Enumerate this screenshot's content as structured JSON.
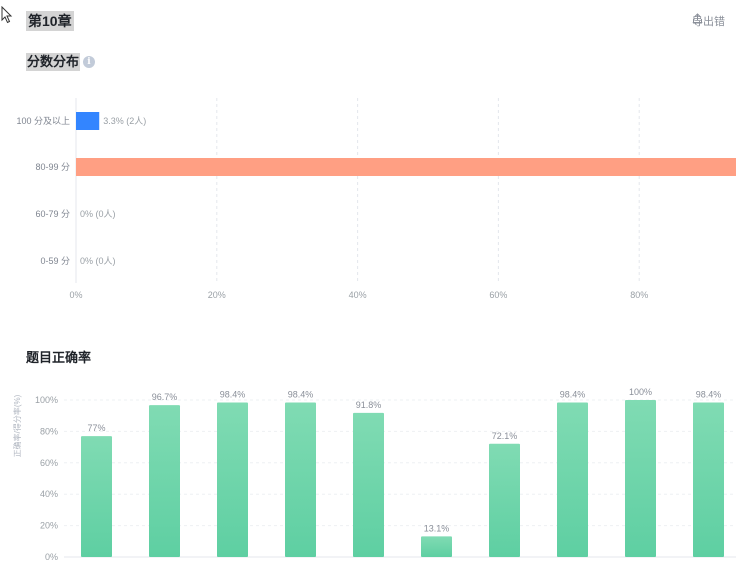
{
  "header": {
    "title": "第10章",
    "export_label": "导出错"
  },
  "score_section": {
    "title": "分数分布"
  },
  "accuracy_section": {
    "title": "题目正确率"
  },
  "chart_data": [
    {
      "type": "bar",
      "orientation": "horizontal",
      "title": "分数分布",
      "categories": [
        "100 分及以上",
        "80-99 分",
        "60-79 分",
        "0-59 分"
      ],
      "values": [
        3.3,
        96.7,
        0,
        0
      ],
      "value_labels": [
        "3.3% (2人)",
        "",
        "0% (0人)",
        "0% (0人)"
      ],
      "colors": [
        "#3385ff",
        "#ff9f83",
        "#cccccc",
        "#cccccc"
      ],
      "xlim": [
        0,
        100
      ],
      "xticks": [
        "0%",
        "20%",
        "40%",
        "60%",
        "80%"
      ],
      "xtick_values": [
        0,
        20,
        40,
        60,
        80
      ],
      "grid": true
    },
    {
      "type": "bar",
      "title": "题目正确率",
      "ylabel": "正确率/得分率(%)",
      "values": [
        77,
        96.7,
        98.4,
        98.4,
        91.8,
        13.1,
        72.1,
        98.4,
        100,
        98.4
      ],
      "value_labels": [
        "77%",
        "96.7%",
        "98.4%",
        "98.4%",
        "91.8%",
        "13.1%",
        "72.1%",
        "98.4%",
        "100%",
        "98.4%"
      ],
      "ylim": [
        0,
        100
      ],
      "yticks": [
        "0%",
        "20%",
        "40%",
        "60%",
        "80%",
        "100%"
      ],
      "ytick_values": [
        0,
        20,
        40,
        60,
        80,
        100
      ],
      "color": "#62d3a6",
      "grid": true
    }
  ]
}
